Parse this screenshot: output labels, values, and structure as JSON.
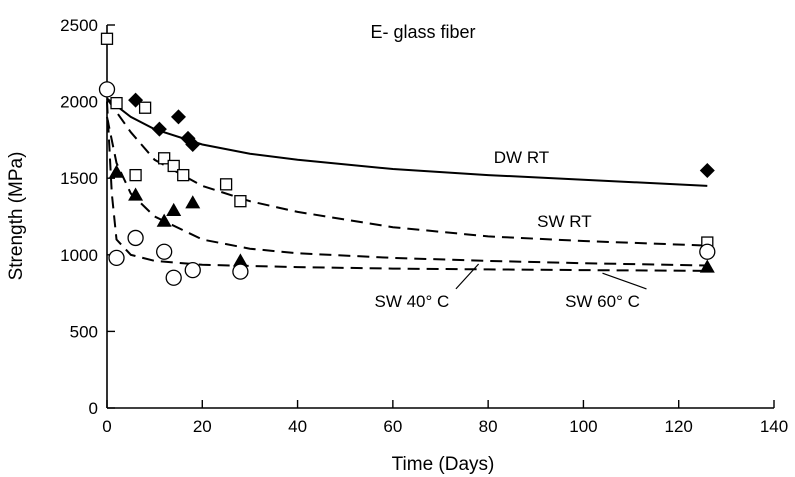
{
  "chart_data": {
    "type": "scatter",
    "title": "E- glass fiber",
    "xlabel": "Time (Days)",
    "ylabel": "Strength (MPa)",
    "xlim": [
      0,
      140
    ],
    "ylim": [
      0,
      2500
    ],
    "xticks": [
      0,
      20,
      40,
      60,
      80,
      100,
      120,
      140
    ],
    "yticks": [
      0,
      500,
      1000,
      1500,
      2000,
      2500
    ],
    "grid": false,
    "series": [
      {
        "name": "DW RT",
        "marker": "diamond-filled",
        "points": [
          [
            6,
            2010
          ],
          [
            11,
            1820
          ],
          [
            15,
            1900
          ],
          [
            17,
            1760
          ],
          [
            18,
            1720
          ],
          [
            126,
            1550
          ]
        ],
        "fit_line": "solid",
        "fit": [
          [
            0,
            2020
          ],
          [
            5,
            1900
          ],
          [
            10,
            1820
          ],
          [
            20,
            1720
          ],
          [
            30,
            1660
          ],
          [
            40,
            1620
          ],
          [
            60,
            1560
          ],
          [
            80,
            1520
          ],
          [
            100,
            1490
          ],
          [
            126,
            1450
          ]
        ]
      },
      {
        "name": "SW RT",
        "marker": "square-open",
        "points": [
          [
            0,
            2410
          ],
          [
            2,
            1990
          ],
          [
            8,
            1960
          ],
          [
            6,
            1520
          ],
          [
            12,
            1630
          ],
          [
            14,
            1580
          ],
          [
            16,
            1520
          ],
          [
            25,
            1460
          ],
          [
            28,
            1350
          ],
          [
            126,
            1080
          ]
        ],
        "fit_line": "dashed",
        "fit": [
          [
            0,
            2020
          ],
          [
            5,
            1800
          ],
          [
            10,
            1620
          ],
          [
            20,
            1450
          ],
          [
            30,
            1350
          ],
          [
            40,
            1280
          ],
          [
            60,
            1180
          ],
          [
            80,
            1120
          ],
          [
            100,
            1090
          ],
          [
            126,
            1060
          ]
        ]
      },
      {
        "name": "SW 40° C",
        "marker": "triangle-filled",
        "points": [
          [
            2,
            1540
          ],
          [
            6,
            1390
          ],
          [
            12,
            1220
          ],
          [
            14,
            1290
          ],
          [
            18,
            1340
          ],
          [
            28,
            960
          ],
          [
            126,
            920
          ]
        ],
        "fit_line": "dashed",
        "fit": [
          [
            0,
            1900
          ],
          [
            2,
            1600
          ],
          [
            5,
            1400
          ],
          [
            10,
            1250
          ],
          [
            20,
            1100
          ],
          [
            30,
            1040
          ],
          [
            40,
            1010
          ],
          [
            60,
            980
          ],
          [
            80,
            960
          ],
          [
            100,
            945
          ],
          [
            126,
            930
          ]
        ]
      },
      {
        "name": "SW 60° C",
        "marker": "circle-open",
        "points": [
          [
            0,
            2080
          ],
          [
            2,
            980
          ],
          [
            6,
            1110
          ],
          [
            12,
            1020
          ],
          [
            14,
            850
          ],
          [
            18,
            900
          ],
          [
            28,
            890
          ],
          [
            126,
            1020
          ]
        ],
        "fit_line": "dashed",
        "fit": [
          [
            0,
            2000
          ],
          [
            1,
            1400
          ],
          [
            2,
            1100
          ],
          [
            5,
            1000
          ],
          [
            10,
            960
          ],
          [
            20,
            935
          ],
          [
            40,
            920
          ],
          [
            60,
            910
          ],
          [
            80,
            905
          ],
          [
            100,
            900
          ],
          [
            126,
            895
          ]
        ]
      }
    ],
    "annotations": [
      {
        "text": "DW RT",
        "x": 87,
        "y": 1600
      },
      {
        "text": "SW RT",
        "x": 96,
        "y": 1180
      },
      {
        "text": "SW 40° C",
        "x": 64,
        "y": 660,
        "leader_to": [
          78,
          940
        ]
      },
      {
        "text": "SW 60° C",
        "x": 104,
        "y": 660,
        "leader_to": [
          104,
          880
        ]
      }
    ]
  }
}
